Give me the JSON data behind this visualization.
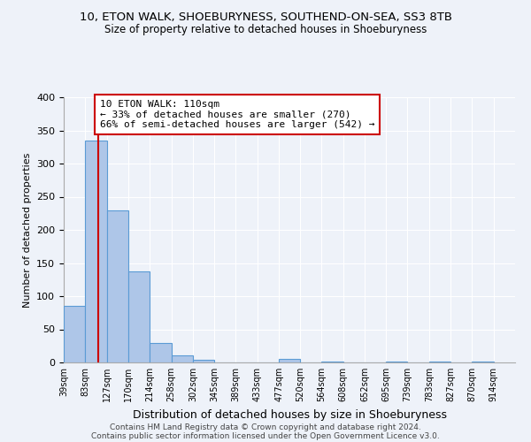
{
  "title": "10, ETON WALK, SHOEBURYNESS, SOUTHEND-ON-SEA, SS3 8TB",
  "subtitle": "Size of property relative to detached houses in Shoeburyness",
  "xlabel": "Distribution of detached houses by size in Shoeburyness",
  "ylabel": "Number of detached properties",
  "bin_edges": [
    39,
    83,
    127,
    170,
    214,
    258,
    302,
    345,
    389,
    433,
    477,
    520,
    564,
    608,
    652,
    695,
    739,
    783,
    827,
    870,
    914
  ],
  "bin_labels": [
    "39sqm",
    "83sqm",
    "127sqm",
    "170sqm",
    "214sqm",
    "258sqm",
    "302sqm",
    "345sqm",
    "389sqm",
    "433sqm",
    "477sqm",
    "520sqm",
    "564sqm",
    "608sqm",
    "652sqm",
    "695sqm",
    "739sqm",
    "783sqm",
    "827sqm",
    "870sqm",
    "914sqm"
  ],
  "counts": [
    85,
    335,
    230,
    137,
    30,
    11,
    4,
    0,
    0,
    0,
    5,
    0,
    1,
    0,
    0,
    1,
    0,
    2,
    0,
    1
  ],
  "bar_color": "#aec6e8",
  "bar_edge_color": "#5b9bd5",
  "vline_x": 110,
  "vline_color": "#cc0000",
  "annotation_line1": "10 ETON WALK: 110sqm",
  "annotation_line2": "← 33% of detached houses are smaller (270)",
  "annotation_line3": "66% of semi-detached houses are larger (542) →",
  "annotation_box_color": "#cc0000",
  "ylim": [
    0,
    400
  ],
  "yticks": [
    0,
    50,
    100,
    150,
    200,
    250,
    300,
    350,
    400
  ],
  "background_color": "#eef2f9",
  "grid_color": "#ffffff",
  "footer_line1": "Contains HM Land Registry data © Crown copyright and database right 2024.",
  "footer_line2": "Contains public sector information licensed under the Open Government Licence v3.0."
}
